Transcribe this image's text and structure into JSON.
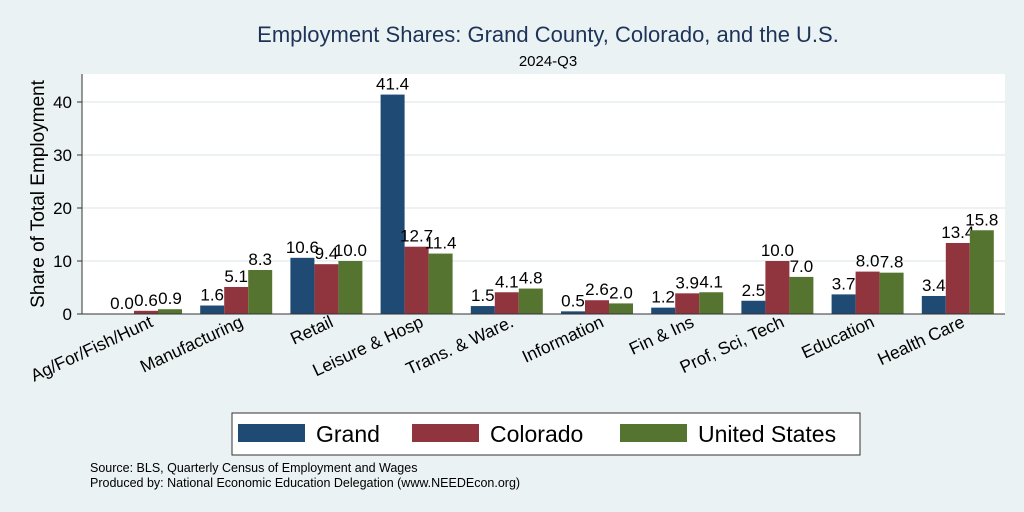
{
  "chart_data": {
    "type": "bar",
    "title": "Employment Shares: Grand County, Colorado, and the U.S.",
    "subtitle": "2024-Q3",
    "xlabel": "",
    "ylabel": "Share of Total Employment",
    "ylim": [
      0,
      45
    ],
    "yticks": [
      0,
      10,
      20,
      30,
      40
    ],
    "grid": true,
    "legend_position": "bottom",
    "categories": [
      "Ag/For/Fish/Hunt",
      "Manufacturing",
      "Retail",
      "Leisure & Hosp",
      "Trans. & Ware.",
      "Information",
      "Fin & Ins",
      "Prof, Sci, Tech",
      "Education",
      "Health Care"
    ],
    "series": [
      {
        "name": "Grand",
        "color": "#1f4a73",
        "values": [
          0.0,
          1.6,
          10.6,
          41.4,
          1.5,
          0.5,
          1.2,
          2.5,
          3.7,
          3.4
        ]
      },
      {
        "name": "Colorado",
        "color": "#90353e",
        "values": [
          0.6,
          5.1,
          9.4,
          12.7,
          4.1,
          2.6,
          3.9,
          10.0,
          8.0,
          13.4
        ]
      },
      {
        "name": "United States",
        "color": "#55742f",
        "values": [
          0.9,
          8.3,
          10.0,
          11.4,
          4.8,
          2.0,
          4.1,
          7.0,
          7.8,
          15.8
        ]
      }
    ]
  },
  "notes": {
    "source": "Source: BLS, Quarterly Census of Employment and Wages",
    "produced": "Produced by: National Economic Education Delegation (www.NEEDEcon.org)"
  }
}
